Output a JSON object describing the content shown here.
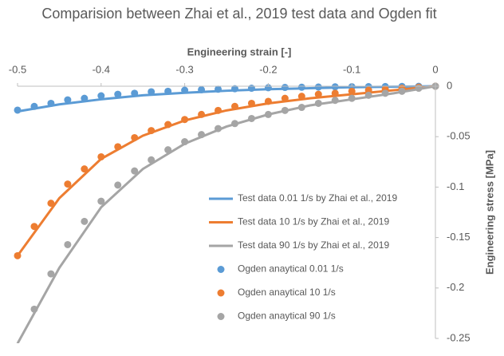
{
  "chart_data": {
    "type": "line",
    "title": "Comparision between Zhai et al., 2019 test data and Ogden fit",
    "x_label": "Engineering strain [-]",
    "y_label": "Engineering stress [MPa]",
    "xlim": [
      -0.5,
      0
    ],
    "xticks": [
      -0.5,
      -0.4,
      -0.3,
      -0.2,
      -0.1,
      0
    ],
    "ylim": [
      -0.25,
      0
    ],
    "yticks": [
      0,
      -0.05,
      -0.1,
      -0.15,
      -0.2,
      -0.25
    ],
    "grid": false,
    "legend": "right",
    "series": [
      {
        "name": "Test data 0.01 1/s by Zhai et al., 2019",
        "type": "line",
        "color": "#5b9bd5",
        "x": [
          -0.5,
          -0.45,
          -0.4,
          -0.35,
          -0.3,
          -0.25,
          -0.2,
          -0.15,
          -0.1,
          -0.05,
          0
        ],
        "values": [
          -0.025,
          -0.018,
          -0.013,
          -0.009,
          -0.0065,
          -0.0045,
          -0.003,
          -0.002,
          -0.001,
          -0.0005,
          0
        ]
      },
      {
        "name": "Test data 10 1/s by Zhai et al., 2019",
        "type": "line",
        "color": "#ed7d31",
        "x": [
          -0.5,
          -0.45,
          -0.4,
          -0.35,
          -0.3,
          -0.25,
          -0.2,
          -0.15,
          -0.1,
          -0.05,
          0
        ],
        "values": [
          -0.168,
          -0.111,
          -0.072,
          -0.049,
          -0.034,
          -0.024,
          -0.017,
          -0.012,
          -0.008,
          -0.004,
          0
        ]
      },
      {
        "name": "Test data 90 1/s by Zhai et al., 2019",
        "type": "line",
        "color": "#a5a5a5",
        "x": [
          -0.5,
          -0.45,
          -0.4,
          -0.35,
          -0.3,
          -0.25,
          -0.2,
          -0.15,
          -0.1,
          -0.05,
          0
        ],
        "values": [
          -0.255,
          -0.18,
          -0.12,
          -0.082,
          -0.057,
          -0.04,
          -0.028,
          -0.019,
          -0.013,
          -0.007,
          0
        ]
      },
      {
        "name": "Ogden anaytical 0.01 1/s",
        "type": "scatter",
        "color": "#5b9bd5",
        "x": [
          -0.5,
          -0.48,
          -0.46,
          -0.44,
          -0.42,
          -0.4,
          -0.38,
          -0.36,
          -0.34,
          -0.32,
          -0.3,
          -0.28,
          -0.26,
          -0.24,
          -0.22,
          -0.2,
          -0.18,
          -0.16,
          -0.14,
          -0.12,
          -0.1,
          -0.08,
          -0.06,
          -0.04,
          -0.02,
          0
        ],
        "values": [
          -0.0237,
          -0.02,
          -0.017,
          -0.0135,
          -0.012,
          -0.0095,
          -0.008,
          -0.007,
          -0.0055,
          -0.005,
          -0.004,
          -0.0035,
          -0.003,
          -0.0025,
          -0.002,
          -0.0015,
          -0.0012,
          -0.001,
          -0.0008,
          -0.0006,
          -0.0005,
          -0.0004,
          -0.0003,
          -0.0002,
          -0.0001,
          0
        ]
      },
      {
        "name": "Ogden anaytical 10 1/s",
        "type": "scatter",
        "color": "#ed7d31",
        "x": [
          -0.5,
          -0.48,
          -0.46,
          -0.44,
          -0.42,
          -0.4,
          -0.38,
          -0.36,
          -0.34,
          -0.32,
          -0.3,
          -0.28,
          -0.26,
          -0.24,
          -0.22,
          -0.2,
          -0.18,
          -0.16,
          -0.14,
          -0.12,
          -0.1,
          -0.08,
          -0.06,
          -0.04,
          -0.02,
          0
        ],
        "values": [
          -0.168,
          -0.139,
          -0.116,
          -0.097,
          -0.082,
          -0.07,
          -0.06,
          -0.051,
          -0.044,
          -0.038,
          -0.033,
          -0.028,
          -0.024,
          -0.02,
          -0.017,
          -0.015,
          -0.012,
          -0.01,
          -0.008,
          -0.007,
          -0.005,
          -0.004,
          -0.003,
          -0.002,
          -0.001,
          0
        ]
      },
      {
        "name": "Ogden anaytical 90 1/s",
        "type": "scatter",
        "color": "#a5a5a5",
        "x": [
          -0.48,
          -0.46,
          -0.44,
          -0.42,
          -0.4,
          -0.38,
          -0.36,
          -0.34,
          -0.32,
          -0.3,
          -0.28,
          -0.26,
          -0.24,
          -0.22,
          -0.2,
          -0.18,
          -0.16,
          -0.14,
          -0.12,
          -0.1,
          -0.08,
          -0.06,
          -0.04,
          -0.02,
          0
        ],
        "values": [
          -0.221,
          -0.186,
          -0.157,
          -0.134,
          -0.114,
          -0.098,
          -0.084,
          -0.073,
          -0.063,
          -0.055,
          -0.048,
          -0.042,
          -0.037,
          -0.032,
          -0.028,
          -0.024,
          -0.021,
          -0.017,
          -0.014,
          -0.012,
          -0.009,
          -0.007,
          -0.005,
          -0.002,
          0
        ]
      }
    ]
  }
}
